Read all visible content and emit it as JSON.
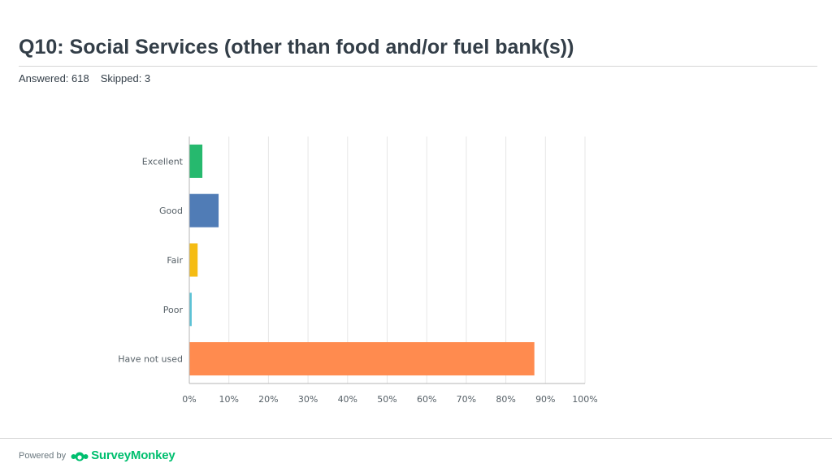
{
  "header": {
    "title": "Q10: Social Services (other than food and/or fuel bank(s))",
    "answered": "Answered: 618",
    "skipped": "Skipped: 3"
  },
  "footer": {
    "powered_by": "Powered by",
    "brand": "SurveyMonkey",
    "logo_icon": "surveymonkey-logo-icon"
  },
  "chart_data": {
    "type": "bar",
    "orientation": "horizontal",
    "categories": [
      "Excellent",
      "Good",
      "Fair",
      "Poor",
      "Have not used"
    ],
    "values": [
      3.2,
      7.3,
      2.0,
      0.5,
      87.1
    ],
    "colors": [
      "#26b96e",
      "#507cb6",
      "#f5bc13",
      "#5bc2d6",
      "#ff8b4f"
    ],
    "x_ticks": [
      "0%",
      "10%",
      "20%",
      "30%",
      "40%",
      "50%",
      "60%",
      "70%",
      "80%",
      "90%",
      "100%"
    ],
    "xlim": [
      0,
      100
    ],
    "unit": "%",
    "grid": true,
    "title": "",
    "xlabel": "",
    "ylabel": ""
  }
}
